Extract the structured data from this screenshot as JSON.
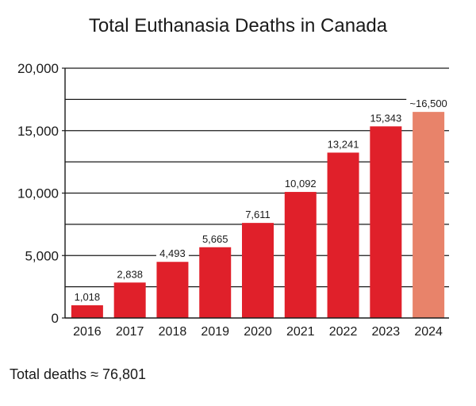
{
  "chart_data": {
    "type": "bar",
    "title": "Total Euthanasia Deaths in Canada",
    "categories": [
      "2016",
      "2017",
      "2018",
      "2019",
      "2020",
      "2021",
      "2022",
      "2023",
      "2024"
    ],
    "values": [
      1018,
      2838,
      4493,
      5665,
      7611,
      10092,
      13241,
      15343,
      16500
    ],
    "data_labels": [
      "1,018",
      "2,838",
      "4,493",
      "5,665",
      "7,611",
      "10,092",
      "13,241",
      "15,343",
      "~16,500"
    ],
    "bar_colors": [
      "#e0202a",
      "#e0202a",
      "#e0202a",
      "#e0202a",
      "#e0202a",
      "#e0202a",
      "#e0202a",
      "#e0202a",
      "#e8836a"
    ],
    "y_ticks": [
      0,
      5000,
      10000,
      15000,
      20000
    ],
    "y_tick_labels": [
      "0",
      "5,000",
      "10,000",
      "15,000",
      "20,000"
    ],
    "ylim": [
      0,
      20000
    ],
    "xlabel": "",
    "ylabel": "",
    "grid": true
  },
  "footer": {
    "total_text": "Total deaths ≈ 76,801"
  }
}
